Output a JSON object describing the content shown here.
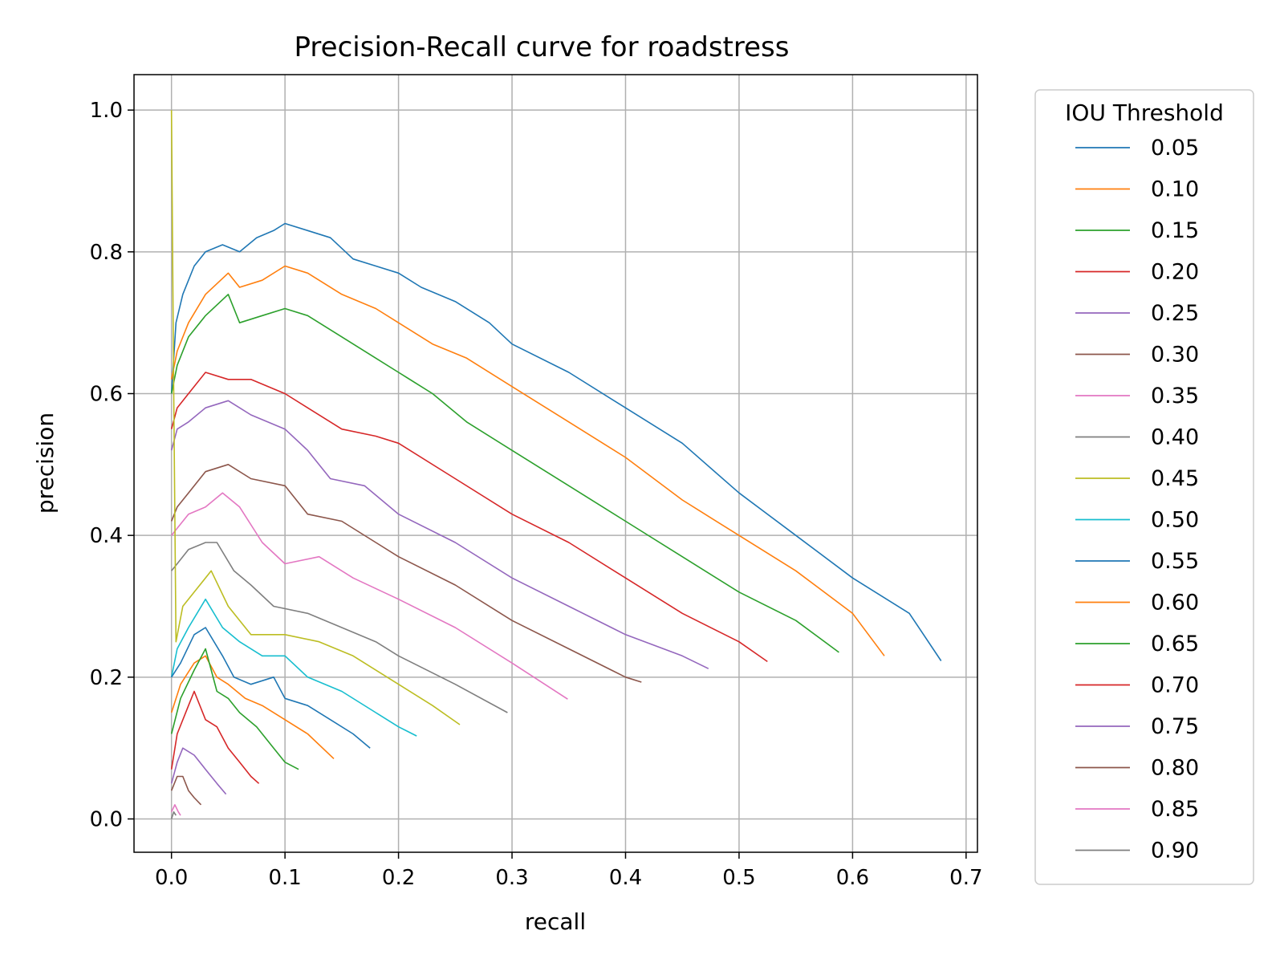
{
  "chart_data": {
    "type": "line",
    "title": "Precision-Recall curve for roadstress",
    "xlabel": "recall",
    "ylabel": "precision",
    "xlim": [
      -0.033,
      0.71
    ],
    "ylim": [
      -0.047,
      1.05
    ],
    "xticks": [
      "0.0",
      "0.1",
      "0.2",
      "0.3",
      "0.4",
      "0.5",
      "0.6",
      "0.7"
    ],
    "yticks": [
      "0.0",
      "0.2",
      "0.4",
      "0.6",
      "0.8",
      "1.0"
    ],
    "grid": true,
    "legend": {
      "title": "IOU Threshold",
      "placement": "outside-right"
    },
    "series": [
      {
        "name": "0.05",
        "color": "#1f77b4",
        "points": [
          [
            0,
            0.6
          ],
          [
            0.004,
            0.7
          ],
          [
            0.01,
            0.74
          ],
          [
            0.02,
            0.78
          ],
          [
            0.03,
            0.8
          ],
          [
            0.045,
            0.81
          ],
          [
            0.06,
            0.8
          ],
          [
            0.075,
            0.82
          ],
          [
            0.09,
            0.83
          ],
          [
            0.1,
            0.84
          ],
          [
            0.12,
            0.83
          ],
          [
            0.14,
            0.82
          ],
          [
            0.16,
            0.79
          ],
          [
            0.18,
            0.78
          ],
          [
            0.2,
            0.77
          ],
          [
            0.22,
            0.75
          ],
          [
            0.25,
            0.73
          ],
          [
            0.28,
            0.7
          ],
          [
            0.3,
            0.67
          ],
          [
            0.35,
            0.63
          ],
          [
            0.4,
            0.58
          ],
          [
            0.45,
            0.53
          ],
          [
            0.5,
            0.46
          ],
          [
            0.55,
            0.4
          ],
          [
            0.6,
            0.34
          ],
          [
            0.65,
            0.29
          ],
          [
            0.678,
            0.223
          ]
        ]
      },
      {
        "name": "0.10",
        "color": "#ff7f0e",
        "points": [
          [
            0,
            0.62
          ],
          [
            0.005,
            0.66
          ],
          [
            0.015,
            0.7
          ],
          [
            0.03,
            0.74
          ],
          [
            0.05,
            0.77
          ],
          [
            0.06,
            0.75
          ],
          [
            0.08,
            0.76
          ],
          [
            0.1,
            0.78
          ],
          [
            0.12,
            0.77
          ],
          [
            0.15,
            0.74
          ],
          [
            0.18,
            0.72
          ],
          [
            0.2,
            0.7
          ],
          [
            0.23,
            0.67
          ],
          [
            0.26,
            0.65
          ],
          [
            0.3,
            0.61
          ],
          [
            0.35,
            0.56
          ],
          [
            0.4,
            0.51
          ],
          [
            0.45,
            0.45
          ],
          [
            0.5,
            0.4
          ],
          [
            0.55,
            0.35
          ],
          [
            0.6,
            0.29
          ],
          [
            0.628,
            0.23
          ]
        ]
      },
      {
        "name": "0.15",
        "color": "#2ca02c",
        "points": [
          [
            0,
            0.6
          ],
          [
            0.005,
            0.64
          ],
          [
            0.015,
            0.68
          ],
          [
            0.03,
            0.71
          ],
          [
            0.05,
            0.74
          ],
          [
            0.06,
            0.7
          ],
          [
            0.08,
            0.71
          ],
          [
            0.1,
            0.72
          ],
          [
            0.12,
            0.71
          ],
          [
            0.15,
            0.68
          ],
          [
            0.18,
            0.65
          ],
          [
            0.2,
            0.63
          ],
          [
            0.23,
            0.6
          ],
          [
            0.26,
            0.56
          ],
          [
            0.3,
            0.52
          ],
          [
            0.35,
            0.47
          ],
          [
            0.4,
            0.42
          ],
          [
            0.45,
            0.37
          ],
          [
            0.5,
            0.32
          ],
          [
            0.55,
            0.28
          ],
          [
            0.588,
            0.235
          ]
        ]
      },
      {
        "name": "0.20",
        "color": "#d62728",
        "points": [
          [
            0,
            0.55
          ],
          [
            0.005,
            0.58
          ],
          [
            0.015,
            0.6
          ],
          [
            0.03,
            0.63
          ],
          [
            0.05,
            0.62
          ],
          [
            0.07,
            0.62
          ],
          [
            0.1,
            0.6
          ],
          [
            0.12,
            0.58
          ],
          [
            0.15,
            0.55
          ],
          [
            0.18,
            0.54
          ],
          [
            0.2,
            0.53
          ],
          [
            0.25,
            0.48
          ],
          [
            0.3,
            0.43
          ],
          [
            0.35,
            0.39
          ],
          [
            0.4,
            0.34
          ],
          [
            0.45,
            0.29
          ],
          [
            0.5,
            0.25
          ],
          [
            0.525,
            0.222
          ]
        ]
      },
      {
        "name": "0.25",
        "color": "#9467bd",
        "points": [
          [
            0,
            0.52
          ],
          [
            0.005,
            0.55
          ],
          [
            0.015,
            0.56
          ],
          [
            0.03,
            0.58
          ],
          [
            0.05,
            0.59
          ],
          [
            0.07,
            0.57
          ],
          [
            0.1,
            0.55
          ],
          [
            0.12,
            0.52
          ],
          [
            0.14,
            0.48
          ],
          [
            0.17,
            0.47
          ],
          [
            0.2,
            0.43
          ],
          [
            0.25,
            0.39
          ],
          [
            0.3,
            0.34
          ],
          [
            0.35,
            0.3
          ],
          [
            0.4,
            0.26
          ],
          [
            0.45,
            0.23
          ],
          [
            0.473,
            0.212
          ]
        ]
      },
      {
        "name": "0.30",
        "color": "#8c564b",
        "points": [
          [
            0,
            0.42
          ],
          [
            0.005,
            0.44
          ],
          [
            0.015,
            0.46
          ],
          [
            0.03,
            0.49
          ],
          [
            0.05,
            0.5
          ],
          [
            0.07,
            0.48
          ],
          [
            0.1,
            0.47
          ],
          [
            0.12,
            0.43
          ],
          [
            0.15,
            0.42
          ],
          [
            0.18,
            0.39
          ],
          [
            0.2,
            0.37
          ],
          [
            0.25,
            0.33
          ],
          [
            0.3,
            0.28
          ],
          [
            0.35,
            0.24
          ],
          [
            0.4,
            0.2
          ],
          [
            0.414,
            0.193
          ]
        ]
      },
      {
        "name": "0.35",
        "color": "#e377c2",
        "points": [
          [
            0,
            0.4
          ],
          [
            0.005,
            0.41
          ],
          [
            0.015,
            0.43
          ],
          [
            0.03,
            0.44
          ],
          [
            0.045,
            0.46
          ],
          [
            0.06,
            0.44
          ],
          [
            0.08,
            0.39
          ],
          [
            0.1,
            0.36
          ],
          [
            0.13,
            0.37
          ],
          [
            0.16,
            0.34
          ],
          [
            0.2,
            0.31
          ],
          [
            0.25,
            0.27
          ],
          [
            0.3,
            0.22
          ],
          [
            0.349,
            0.169
          ]
        ]
      },
      {
        "name": "0.40",
        "color": "#7f7f7f",
        "points": [
          [
            0,
            0.35
          ],
          [
            0.005,
            0.36
          ],
          [
            0.015,
            0.38
          ],
          [
            0.03,
            0.39
          ],
          [
            0.04,
            0.39
          ],
          [
            0.055,
            0.35
          ],
          [
            0.07,
            0.33
          ],
          [
            0.09,
            0.3
          ],
          [
            0.12,
            0.29
          ],
          [
            0.15,
            0.27
          ],
          [
            0.18,
            0.25
          ],
          [
            0.2,
            0.23
          ],
          [
            0.25,
            0.19
          ],
          [
            0.296,
            0.15
          ]
        ]
      },
      {
        "name": "0.45",
        "color": "#bcbd22",
        "points": [
          [
            0,
            1.0
          ],
          [
            0.002,
            0.6
          ],
          [
            0.004,
            0.25
          ],
          [
            0.01,
            0.3
          ],
          [
            0.02,
            0.32
          ],
          [
            0.035,
            0.35
          ],
          [
            0.05,
            0.3
          ],
          [
            0.07,
            0.26
          ],
          [
            0.1,
            0.26
          ],
          [
            0.13,
            0.25
          ],
          [
            0.16,
            0.23
          ],
          [
            0.2,
            0.19
          ],
          [
            0.23,
            0.16
          ],
          [
            0.254,
            0.133
          ]
        ]
      },
      {
        "name": "0.50",
        "color": "#17becf",
        "points": [
          [
            0,
            0.2
          ],
          [
            0.005,
            0.24
          ],
          [
            0.015,
            0.27
          ],
          [
            0.03,
            0.31
          ],
          [
            0.045,
            0.27
          ],
          [
            0.06,
            0.25
          ],
          [
            0.08,
            0.23
          ],
          [
            0.1,
            0.23
          ],
          [
            0.12,
            0.2
          ],
          [
            0.15,
            0.18
          ],
          [
            0.18,
            0.15
          ],
          [
            0.2,
            0.13
          ],
          [
            0.216,
            0.117
          ]
        ]
      },
      {
        "name": "0.55",
        "color": "#1f77b4",
        "points": [
          [
            0,
            0.2
          ],
          [
            0.008,
            0.22
          ],
          [
            0.02,
            0.26
          ],
          [
            0.03,
            0.27
          ],
          [
            0.045,
            0.23
          ],
          [
            0.055,
            0.2
          ],
          [
            0.07,
            0.19
          ],
          [
            0.09,
            0.2
          ],
          [
            0.1,
            0.17
          ],
          [
            0.12,
            0.16
          ],
          [
            0.14,
            0.14
          ],
          [
            0.16,
            0.12
          ],
          [
            0.175,
            0.1
          ]
        ]
      },
      {
        "name": "0.60",
        "color": "#ff7f0e",
        "points": [
          [
            0,
            0.15
          ],
          [
            0.008,
            0.19
          ],
          [
            0.02,
            0.22
          ],
          [
            0.03,
            0.23
          ],
          [
            0.04,
            0.2
          ],
          [
            0.05,
            0.19
          ],
          [
            0.065,
            0.17
          ],
          [
            0.08,
            0.16
          ],
          [
            0.1,
            0.14
          ],
          [
            0.12,
            0.12
          ],
          [
            0.143,
            0.085
          ]
        ]
      },
      {
        "name": "0.65",
        "color": "#2ca02c",
        "points": [
          [
            0,
            0.12
          ],
          [
            0.008,
            0.17
          ],
          [
            0.02,
            0.21
          ],
          [
            0.03,
            0.24
          ],
          [
            0.04,
            0.18
          ],
          [
            0.05,
            0.17
          ],
          [
            0.06,
            0.15
          ],
          [
            0.075,
            0.13
          ],
          [
            0.09,
            0.1
          ],
          [
            0.1,
            0.08
          ],
          [
            0.112,
            0.07
          ]
        ]
      },
      {
        "name": "0.70",
        "color": "#d62728",
        "points": [
          [
            0,
            0.07
          ],
          [
            0.005,
            0.12
          ],
          [
            0.015,
            0.16
          ],
          [
            0.02,
            0.18
          ],
          [
            0.03,
            0.14
          ],
          [
            0.04,
            0.13
          ],
          [
            0.05,
            0.1
          ],
          [
            0.06,
            0.08
          ],
          [
            0.07,
            0.06
          ],
          [
            0.077,
            0.05
          ]
        ]
      },
      {
        "name": "0.75",
        "color": "#9467bd",
        "points": [
          [
            0,
            0.05
          ],
          [
            0.005,
            0.08
          ],
          [
            0.01,
            0.1
          ],
          [
            0.02,
            0.09
          ],
          [
            0.03,
            0.07
          ],
          [
            0.04,
            0.05
          ],
          [
            0.048,
            0.035
          ]
        ]
      },
      {
        "name": "0.80",
        "color": "#8c564b",
        "points": [
          [
            0,
            0.04
          ],
          [
            0.005,
            0.06
          ],
          [
            0.01,
            0.06
          ],
          [
            0.015,
            0.04
          ],
          [
            0.02,
            0.03
          ],
          [
            0.026,
            0.02
          ]
        ]
      },
      {
        "name": "0.85",
        "color": "#e377c2",
        "points": [
          [
            0,
            0.01
          ],
          [
            0.003,
            0.02
          ],
          [
            0.006,
            0.01
          ],
          [
            0.008,
            0.005
          ]
        ]
      },
      {
        "name": "0.90",
        "color": "#7f7f7f",
        "points": [
          [
            0,
            0.0
          ],
          [
            0.002,
            0.01
          ],
          [
            0.004,
            0.005
          ]
        ]
      }
    ]
  }
}
